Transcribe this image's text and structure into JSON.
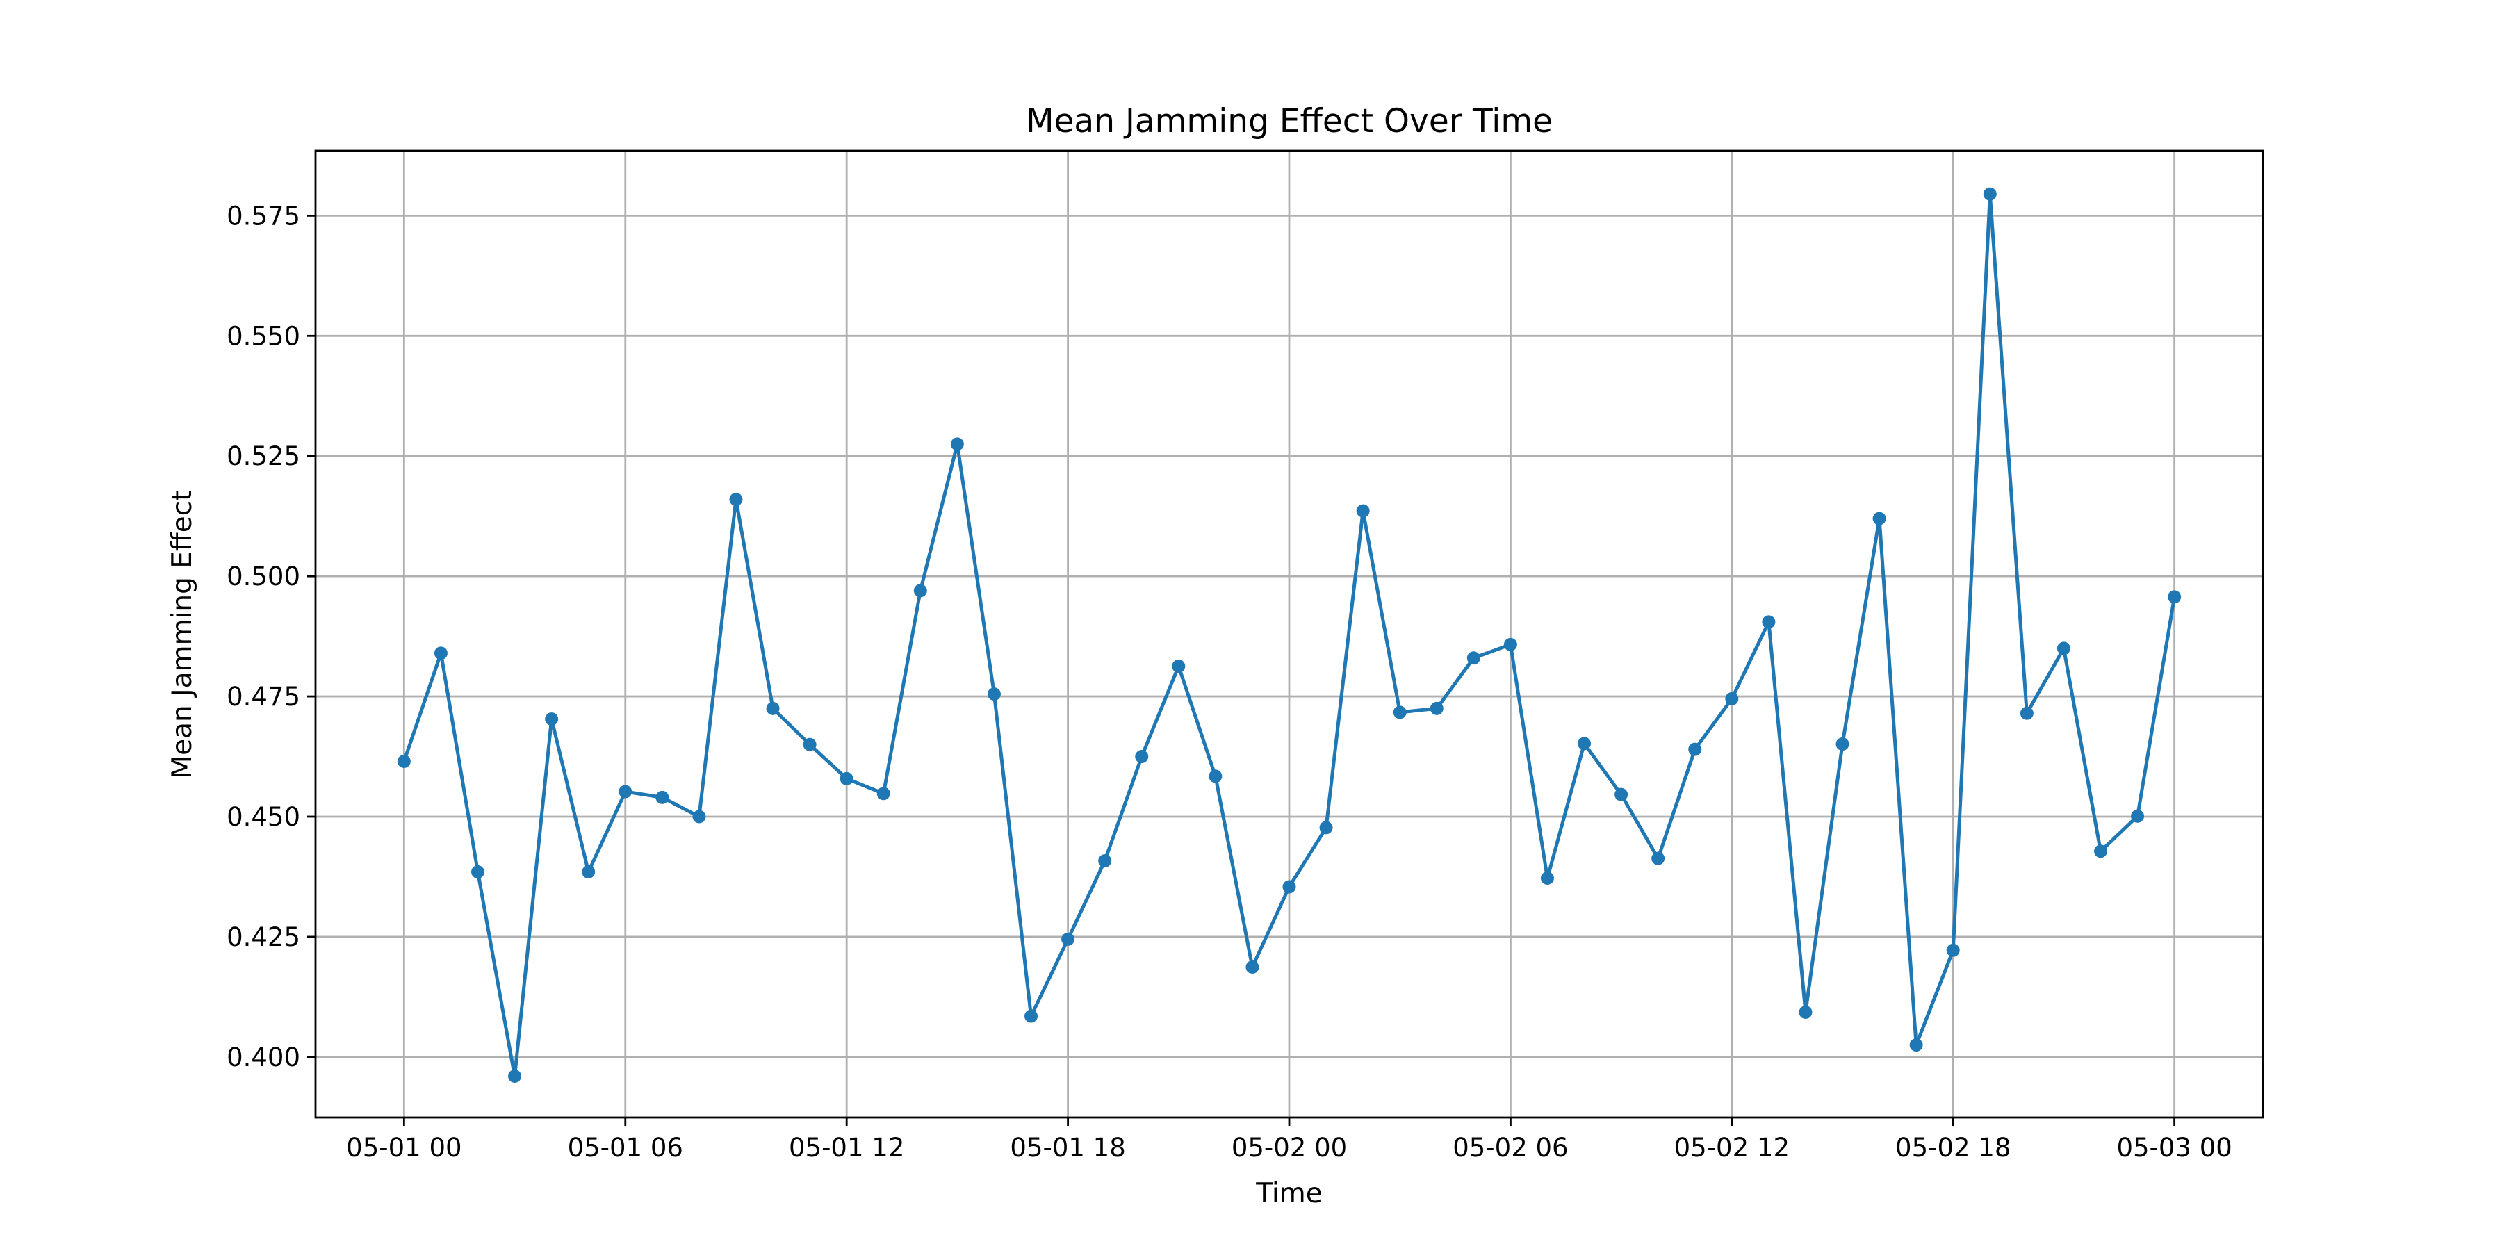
{
  "chart_data": {
    "type": "line",
    "title": "Mean Jamming Effect Over Time",
    "xlabel": "Time",
    "ylabel": "Mean Jamming Effect",
    "grid": true,
    "line_color": "#1f77b4",
    "marker": "circle",
    "x_tick_values": [
      "2024-05-01T00:00",
      "2024-05-01T06:00",
      "2024-05-01T12:00",
      "2024-05-01T18:00",
      "2024-05-02T00:00",
      "2024-05-02T06:00",
      "2024-05-02T12:00",
      "2024-05-02T18:00",
      "2024-05-03T00:00"
    ],
    "x_tick_labels": [
      "05-01 00",
      "05-01 06",
      "05-01 12",
      "05-01 18",
      "05-02 00",
      "05-02 06",
      "05-02 12",
      "05-02 18",
      "05-03 00"
    ],
    "xlim": [
      "2024-04-30T21:36",
      "2024-05-03T02:24"
    ],
    "y_ticks": [
      0.4,
      0.425,
      0.45,
      0.475,
      0.5,
      0.525,
      0.55,
      0.575
    ],
    "y_tick_labels": [
      "0.400",
      "0.425",
      "0.450",
      "0.475",
      "0.500",
      "0.525",
      "0.550",
      "0.575"
    ],
    "ylim": [
      0.3874,
      0.5885
    ],
    "series": [
      {
        "x": [
          "2024-05-01T00:00",
          "2024-05-01T01:00",
          "2024-05-01T02:00",
          "2024-05-01T03:00",
          "2024-05-01T04:00",
          "2024-05-01T05:00",
          "2024-05-01T06:00",
          "2024-05-01T07:00",
          "2024-05-01T08:00",
          "2024-05-01T09:00",
          "2024-05-01T10:00",
          "2024-05-01T11:00",
          "2024-05-01T12:00",
          "2024-05-01T13:00",
          "2024-05-01T14:00",
          "2024-05-01T15:00",
          "2024-05-01T16:00",
          "2024-05-01T17:00",
          "2024-05-01T18:00",
          "2024-05-01T19:00",
          "2024-05-01T20:00",
          "2024-05-01T21:00",
          "2024-05-01T22:00",
          "2024-05-01T23:00",
          "2024-05-02T00:00",
          "2024-05-02T01:00",
          "2024-05-02T02:00",
          "2024-05-02T03:00",
          "2024-05-02T04:00",
          "2024-05-02T05:00",
          "2024-05-02T06:00",
          "2024-05-02T07:00",
          "2024-05-02T08:00",
          "2024-05-02T09:00",
          "2024-05-02T10:00",
          "2024-05-02T11:00",
          "2024-05-02T12:00",
          "2024-05-02T13:00",
          "2024-05-02T14:00",
          "2024-05-02T15:00",
          "2024-05-02T16:00",
          "2024-05-02T17:00",
          "2024-05-02T18:00",
          "2024-05-02T19:00",
          "2024-05-02T20:00",
          "2024-05-02T21:00",
          "2024-05-02T22:00",
          "2024-05-02T23:00",
          "2024-05-03T00:00"
        ],
        "values": [
          0.4615,
          0.484,
          0.4385,
          0.396,
          0.4703,
          0.4385,
          0.4552,
          0.454,
          0.45,
          0.516,
          0.4725,
          0.465,
          0.4579,
          0.4548,
          0.497,
          0.5275,
          0.4755,
          0.4085,
          0.4245,
          0.4408,
          0.4625,
          0.4813,
          0.4584,
          0.4187,
          0.4354,
          0.4477,
          0.5136,
          0.4717,
          0.4725,
          0.483,
          0.4858,
          0.4372,
          0.4652,
          0.4546,
          0.4413,
          0.464,
          0.4745,
          0.4905,
          0.4093,
          0.4651,
          0.512,
          0.4025,
          0.4222,
          0.5795,
          0.4715,
          0.485,
          0.4428,
          0.4501,
          0.4957
        ]
      }
    ]
  }
}
